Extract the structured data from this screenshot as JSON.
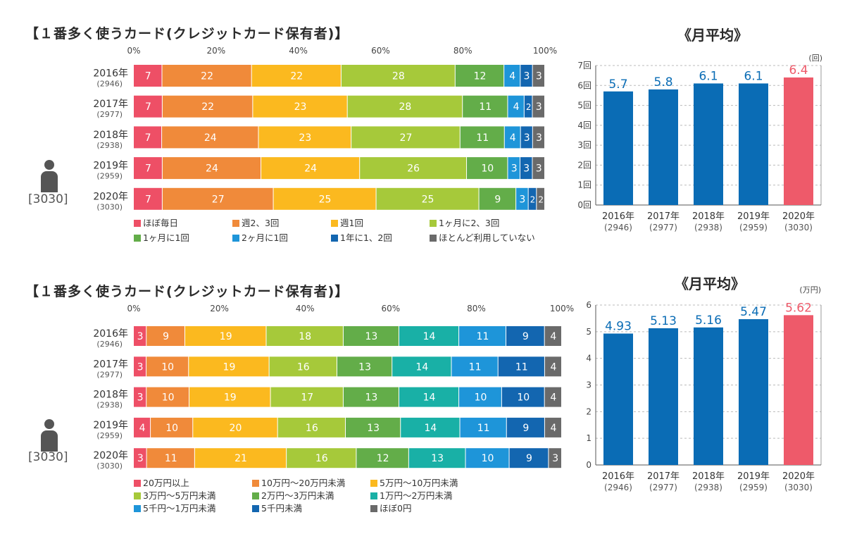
{
  "chart_data": [
    {
      "type": "bar",
      "stacked": "horizontal-percent",
      "title": "【１番多く使うカード(クレジットカード保有者)】",
      "x_axis_ticks": [
        "0%",
        "20%",
        "40%",
        "60%",
        "80%",
        "100%"
      ],
      "categories": [
        "2016年",
        "2017年",
        "2018年",
        "2019年",
        "2020年"
      ],
      "sample_sizes": [
        "(2946)",
        "(2977)",
        "(2938)",
        "(2959)",
        "(3030)"
      ],
      "respondents": "[3030]",
      "series": [
        {
          "name": "ほぼ毎日",
          "color": "#ee4f66",
          "values": [
            7,
            7,
            7,
            7,
            7
          ]
        },
        {
          "name": "週2、3回",
          "color": "#f08a3a",
          "values": [
            22,
            22,
            24,
            24,
            27
          ]
        },
        {
          "name": "週1回",
          "color": "#fbb91f",
          "values": [
            22,
            23,
            23,
            24,
            25
          ]
        },
        {
          "name": "1ヶ月に2、3回",
          "color": "#a6c93a",
          "values": [
            28,
            28,
            27,
            26,
            25
          ]
        },
        {
          "name": "1ヶ月に1回",
          "color": "#63ad49",
          "values": [
            12,
            11,
            11,
            10,
            9
          ]
        },
        {
          "name": "2ヶ月に1回",
          "color": "#1e95d9",
          "values": [
            4,
            4,
            4,
            3,
            3
          ]
        },
        {
          "name": "1年に1、2回",
          "color": "#1366b0",
          "values": [
            3,
            2,
            3,
            3,
            2
          ]
        },
        {
          "name": "ほとんど利用していない",
          "color": "#6a6a6a",
          "values": [
            3,
            3,
            3,
            3,
            2
          ]
        }
      ]
    },
    {
      "type": "bar",
      "title": "《月平均》",
      "unit_label": "(回)",
      "categories": [
        "2016年",
        "2017年",
        "2018年",
        "2019年",
        "2020年"
      ],
      "sample_sizes": [
        "(2946)",
        "(2977)",
        "(2938)",
        "(2959)",
        "(3030)"
      ],
      "values": [
        5.7,
        5.8,
        6.1,
        6.1,
        6.4
      ],
      "value_labels": [
        "5.7",
        "5.8",
        "6.1",
        "6.1",
        "6.4"
      ],
      "y_ticks": [
        "0回",
        "1回",
        "2回",
        "3回",
        "4回",
        "5回",
        "6回",
        "7回"
      ],
      "ylim": [
        0,
        7
      ],
      "colors": [
        "#0a6cb5",
        "#0a6cb5",
        "#0a6cb5",
        "#0a6cb5",
        "#ee5a6a"
      ],
      "label_colors": [
        "#0a6cb5",
        "#0a6cb5",
        "#0a6cb5",
        "#0a6cb5",
        "#ee5a6a"
      ]
    },
    {
      "type": "bar",
      "stacked": "horizontal-percent",
      "title": "【１番多く使うカード(クレジットカード保有者)】",
      "x_axis_ticks": [
        "0%",
        "20%",
        "40%",
        "60%",
        "80%",
        "100%"
      ],
      "categories": [
        "2016年",
        "2017年",
        "2018年",
        "2019年",
        "2020年"
      ],
      "sample_sizes": [
        "(2946)",
        "(2977)",
        "(2938)",
        "(2959)",
        "(3030)"
      ],
      "respondents": "[3030]",
      "series": [
        {
          "name": "20万円以上",
          "color": "#ee4f66",
          "values": [
            3,
            3,
            3,
            4,
            3
          ]
        },
        {
          "name": "10万円〜20万円未満",
          "color": "#f08a3a",
          "values": [
            9,
            10,
            10,
            10,
            11
          ]
        },
        {
          "name": "5万円〜10万円未満",
          "color": "#fbb91f",
          "values": [
            19,
            19,
            19,
            20,
            21
          ]
        },
        {
          "name": "3万円〜5万円未満",
          "color": "#a6c93a",
          "values": [
            18,
            16,
            17,
            16,
            16
          ]
        },
        {
          "name": "2万円〜3万円未満",
          "color": "#63ad49",
          "values": [
            13,
            13,
            13,
            13,
            12
          ]
        },
        {
          "name": "1万円〜2万円未満",
          "color": "#19b0a6",
          "values": [
            14,
            14,
            14,
            14,
            13
          ]
        },
        {
          "name": "5千円〜1万円未満",
          "color": "#1e95d9",
          "values": [
            11,
            11,
            10,
            11,
            10
          ]
        },
        {
          "name": "5千円未満",
          "color": "#1366b0",
          "values": [
            9,
            11,
            10,
            9,
            9
          ]
        },
        {
          "name": "ほぼ0円",
          "color": "#6a6a6a",
          "values": [
            4,
            4,
            4,
            4,
            3
          ]
        }
      ]
    },
    {
      "type": "bar",
      "title": "《月平均》",
      "unit_label": "(万円)",
      "categories": [
        "2016年",
        "2017年",
        "2018年",
        "2019年",
        "2020年"
      ],
      "sample_sizes": [
        "(2946)",
        "(2977)",
        "(2938)",
        "(2959)",
        "(3030)"
      ],
      "values": [
        4.93,
        5.13,
        5.16,
        5.47,
        5.62
      ],
      "value_labels": [
        "4.93",
        "5.13",
        "5.16",
        "5.47",
        "5.62"
      ],
      "y_ticks": [
        "0",
        "1",
        "2",
        "3",
        "4",
        "5",
        "6"
      ],
      "ylim": [
        0,
        6
      ],
      "colors": [
        "#0a6cb5",
        "#0a6cb5",
        "#0a6cb5",
        "#0a6cb5",
        "#ee5a6a"
      ],
      "label_colors": [
        "#0a6cb5",
        "#0a6cb5",
        "#0a6cb5",
        "#0a6cb5",
        "#ee5a6a"
      ]
    }
  ]
}
